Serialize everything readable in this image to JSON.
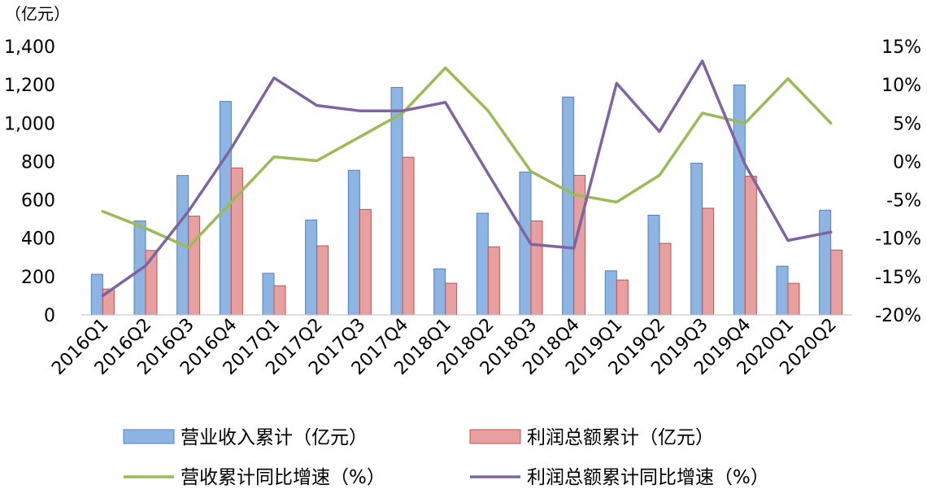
{
  "chart_data": {
    "type": "bar",
    "unit_label": "（亿元）",
    "categories": [
      "2016Q1",
      "2016Q2",
      "2016Q3",
      "2016Q4",
      "2017Q1",
      "2017Q2",
      "2017Q3",
      "2017Q4",
      "2018Q1",
      "2018Q2",
      "2018Q3",
      "2018Q4",
      "2019Q1",
      "2019Q2",
      "2019Q3",
      "2019Q4",
      "2020Q1",
      "2020Q2"
    ],
    "left_axis": {
      "ylim": [
        0,
        1400
      ],
      "ticks": [
        0,
        200,
        400,
        600,
        800,
        1000,
        1200,
        1400
      ],
      "tick_labels": [
        "0",
        "200",
        "400",
        "600",
        "800",
        "1,000",
        "1,200",
        "1,400"
      ]
    },
    "right_axis": {
      "ylim": [
        -20,
        15
      ],
      "ticks": [
        -20,
        -15,
        -10,
        -5,
        0,
        5,
        10,
        15
      ],
      "tick_labels": [
        "-20%",
        "-15%",
        "-10%",
        "-5%",
        "0%",
        "5%",
        "10%",
        "15%"
      ]
    },
    "grid": false,
    "legend_position": "bottom",
    "series": [
      {
        "name": "营业收入累计（亿元）",
        "kind": "bar",
        "axis": "left",
        "color": "#8eb4e3",
        "border": "#4f81bd",
        "values": [
          212,
          490,
          727,
          1113,
          217,
          495,
          754,
          1186,
          240,
          530,
          745,
          1136,
          230,
          520,
          791,
          1199,
          254,
          546
        ]
      },
      {
        "name": "利润总额累计（亿元）",
        "kind": "bar",
        "axis": "left",
        "color": "#e6a0a0",
        "border": "#c0504d",
        "values": [
          135,
          336,
          515,
          766,
          152,
          360,
          550,
          822,
          165,
          355,
          490,
          728,
          182,
          373,
          556,
          723,
          165,
          338
        ]
      },
      {
        "name": "营收累计同比增速（%）",
        "kind": "line",
        "axis": "right",
        "color": "#9bbb59",
        "values": [
          -6.5,
          -8.7,
          -11.2,
          -5.3,
          0.6,
          0.1,
          3.2,
          6.3,
          12.2,
          6.6,
          -1.3,
          -4.3,
          -5.3,
          -1.8,
          6.3,
          5.0,
          10.8,
          5.0
        ]
      },
      {
        "name": "利润总额累计同比增速（%）",
        "kind": "line",
        "axis": "right",
        "color": "#8064a2",
        "values": [
          -17.5,
          -13.6,
          -6.5,
          1.7,
          10.9,
          7.3,
          6.6,
          6.6,
          7.7,
          -1.6,
          -10.8,
          -11.3,
          10.2,
          3.9,
          13.1,
          -0.4,
          -10.3,
          -9.2
        ]
      }
    ]
  }
}
